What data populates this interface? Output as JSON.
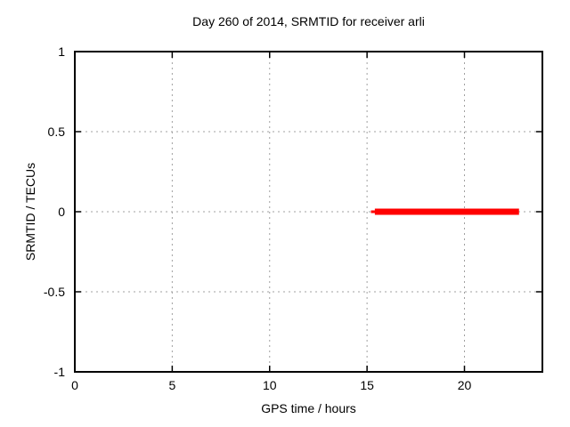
{
  "window": {
    "background": "#ffffff"
  },
  "chart_data": {
    "type": "line",
    "title": "Day 260 of 2014, SRMTID for receiver arli",
    "xlabel": "GPS time / hours",
    "ylabel": "SRMTID / TECUs",
    "xlim": [
      0,
      24
    ],
    "ylim": [
      -1,
      1
    ],
    "xticks": [
      0,
      5,
      10,
      15,
      20
    ],
    "yticks": [
      -1,
      -0.5,
      0,
      0.5,
      1
    ],
    "grid": true,
    "legend": "none",
    "series": [
      {
        "name": "SRMTID",
        "color": "#ff0000",
        "y_value": 0,
        "x_start": 15.2,
        "x_end": 22.8,
        "segments": [
          {
            "x1": 15.2,
            "x2": 15.5,
            "y": 0,
            "px_thickness": 3
          },
          {
            "x1": 15.4,
            "x2": 22.8,
            "y": 0,
            "px_thickness": 7
          }
        ]
      }
    ],
    "colors": {
      "border": "#000000",
      "grid": "#a0a0a0",
      "text": "#000000"
    }
  }
}
